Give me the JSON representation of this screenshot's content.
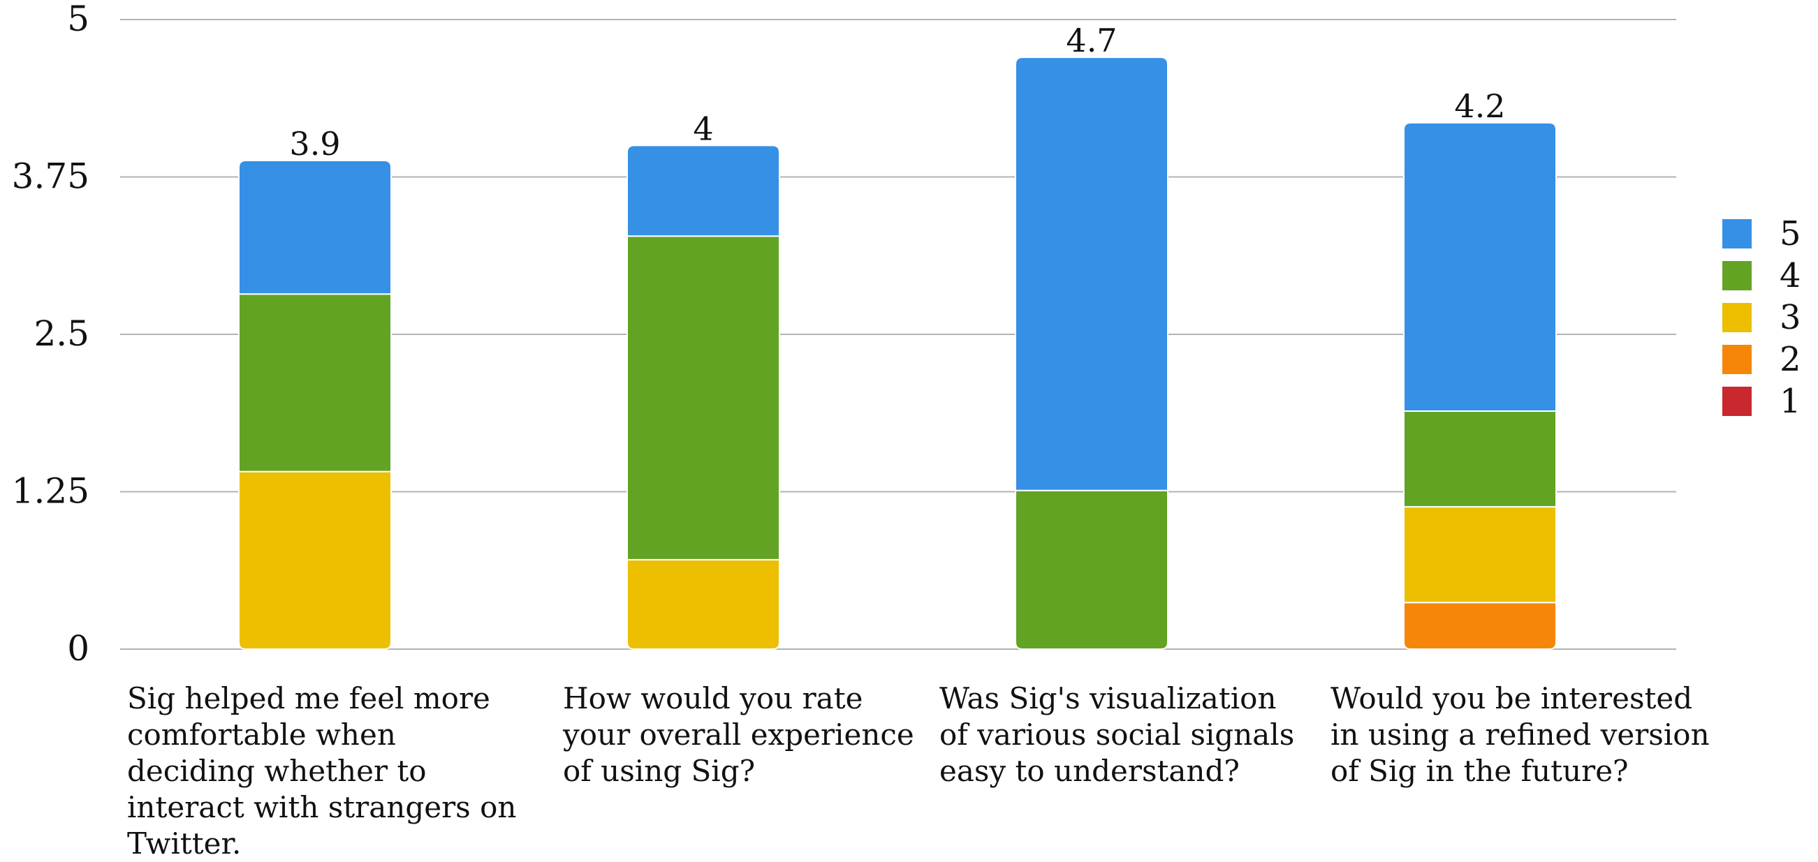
{
  "chart_data": {
    "type": "bar",
    "stacked": true,
    "categories": [
      "Sig helped me feel more comfortable when deciding whether to interact with strangers on Twitter.",
      "How would you rate your overall experience of using Sig?",
      "Was Sig's visualization of various social signals easy to understand?",
      "Would you be interested in using a refined version of Sig in the future?"
    ],
    "series": [
      {
        "name": "1",
        "color": "#c8282e",
        "values": [
          0,
          0,
          0,
          0
        ]
      },
      {
        "name": "2",
        "color": "#f5860a",
        "values": [
          0,
          0,
          0,
          0.37
        ]
      },
      {
        "name": "3",
        "color": "#ecbf00",
        "values": [
          1.41,
          0.71,
          0,
          0.76
        ]
      },
      {
        "name": "4",
        "color": "#62a324",
        "values": [
          1.41,
          2.57,
          1.26,
          0.76
        ]
      },
      {
        "name": "5",
        "color": "#3590e6",
        "values": [
          1.06,
          0.72,
          3.44,
          2.29
        ]
      }
    ],
    "totals": [
      "3.9",
      "4",
      "4.7",
      "4.2"
    ],
    "ylim": [
      0,
      5
    ],
    "yticks": [
      "0",
      "1.25",
      "2.5",
      "3.75",
      "5"
    ],
    "grid": true,
    "legend_position": "right",
    "title": "",
    "xlabel": "",
    "ylabel": ""
  },
  "labels": {
    "cat0": "Sig helped me feel more comfortable when deciding whether to interact with strangers on Twitter.",
    "cat1": "How would you rate your overall experience of using Sig?",
    "cat2": "Was Sig's visualization of various social signals easy to understand?",
    "cat3": "Would you be interested in using a refined version of Sig in the future?"
  },
  "legend": [
    {
      "label": "5",
      "color": "#3590e6"
    },
    {
      "label": "4",
      "color": "#62a324"
    },
    {
      "label": "3",
      "color": "#ecbf00"
    },
    {
      "label": "2",
      "color": "#f5860a"
    },
    {
      "label": "1",
      "color": "#c8282e"
    }
  ]
}
